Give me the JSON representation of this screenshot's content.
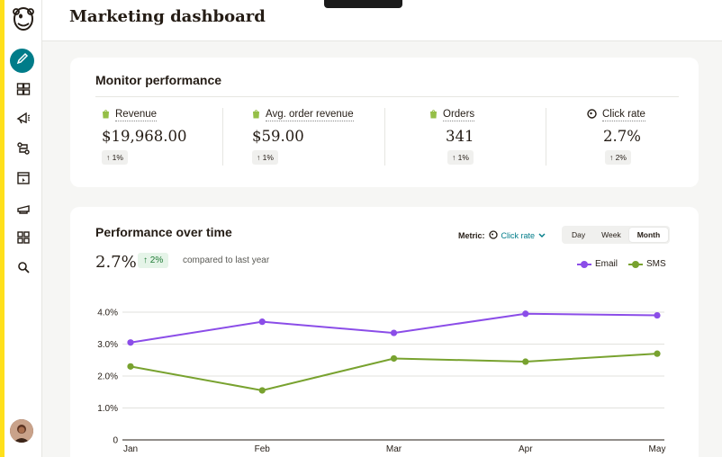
{
  "header": {
    "title": "Marketing dashboard"
  },
  "sidebar": {
    "items": [
      {
        "icon": "pencil-icon",
        "name": "create"
      },
      {
        "icon": "audience-icon",
        "name": "audience"
      },
      {
        "icon": "megaphone-icon",
        "name": "campaigns"
      },
      {
        "icon": "automations-icon",
        "name": "automations"
      },
      {
        "icon": "website-icon",
        "name": "website"
      },
      {
        "icon": "content-icon",
        "name": "content"
      },
      {
        "icon": "apps-icon",
        "name": "integrations"
      },
      {
        "icon": "search-icon",
        "name": "search"
      }
    ]
  },
  "monitor": {
    "title": "Monitor performance",
    "metrics": [
      {
        "label": "Revenue",
        "value": "$19,968.00",
        "change": "1%",
        "icon": "shopify-icon"
      },
      {
        "label": "Avg. order revenue",
        "value": "$59.00",
        "change": "1%",
        "icon": "shopify-icon"
      },
      {
        "label": "Orders",
        "value": "341",
        "change": "1%",
        "icon": "shopify-icon"
      },
      {
        "label": "Click rate",
        "value": "2.7%",
        "change": "2%",
        "icon": "mailchimp-icon"
      }
    ]
  },
  "performance": {
    "title": "Performance over time",
    "value": "2.7%",
    "change": "2%",
    "compare": "compared to last year",
    "metric_label": "Metric:",
    "metric_value": "Click rate",
    "ranges": [
      "Day",
      "Week",
      "Month"
    ],
    "selected_range": "Month"
  },
  "colors": {
    "accent": "#007c89",
    "email": "#8b4de8",
    "sms": "#78a22f",
    "brand_yellow": "#ffe01b"
  },
  "chart_data": {
    "type": "line",
    "x": [
      "Jan",
      "Feb",
      "Mar",
      "Apr",
      "May"
    ],
    "y_ticks": [
      "0",
      "1.0%",
      "2.0%",
      "3.0%",
      "4.0%"
    ],
    "ylim": [
      0,
      4
    ],
    "series": [
      {
        "name": "Email",
        "values": [
          3.05,
          3.7,
          3.35,
          3.95,
          3.9
        ]
      },
      {
        "name": "SMS",
        "values": [
          2.3,
          1.55,
          2.55,
          2.45,
          2.7
        ]
      }
    ],
    "legend": "top-right",
    "grid": true
  }
}
